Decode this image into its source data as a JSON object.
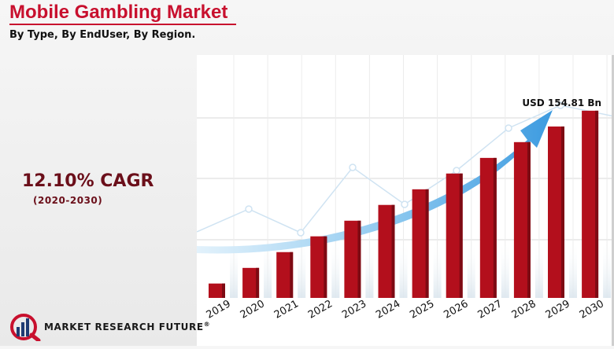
{
  "header": {
    "title": "Mobile Gambling Market",
    "subtitle": "By Type, By EndUser, By Region."
  },
  "cagr": {
    "value": "12.10% CAGR",
    "period": "(2020-2030)"
  },
  "brand": {
    "name": "MARKET RESEARCH FUTURE",
    "mark": "®"
  },
  "colors": {
    "bar": "#b30f1c",
    "bar_shade": "#7d0a13",
    "arrow": "#5aaee6",
    "title": "#c8102e"
  },
  "chart_data": {
    "type": "bar",
    "title": "Mobile Gambling Market",
    "categories": [
      "2019",
      "2020",
      "2021",
      "2022",
      "2023",
      "2024",
      "2025",
      "2026",
      "2027",
      "2028",
      "2029",
      "2030"
    ],
    "values": [
      9.3,
      19.4,
      29.6,
      39.8,
      49.9,
      60.1,
      70.2,
      80.4,
      90.5,
      100.7,
      110.8,
      121.0
    ],
    "value_unit": "relative",
    "annotations": [
      {
        "category": "2030",
        "text": "USD 154.81 Bn"
      }
    ],
    "ylim": [
      0,
      157
    ],
    "grid": true,
    "legend": "none"
  }
}
